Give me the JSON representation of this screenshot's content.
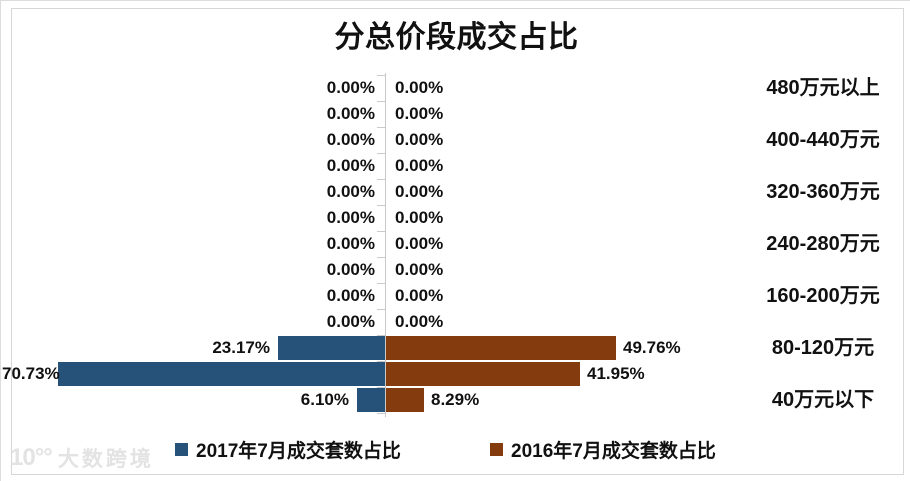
{
  "title": "分总价段成交占比",
  "watermark": {
    "logo": "10°°",
    "brand": "大数跨境"
  },
  "chart_data": {
    "type": "bar",
    "variant": "tornado-horizontal",
    "title": "分总价段成交占比",
    "categories": [
      "480万元以上",
      "",
      "400-440万元",
      "",
      "320-360万元",
      "",
      "240-280万元",
      "",
      "160-200万元",
      "",
      "80-120万元",
      "",
      "40万元以下"
    ],
    "series": [
      {
        "name": "2017年7月成交套数占比",
        "side": "left",
        "color": "#265279",
        "values": [
          0,
          0,
          0,
          0,
          0,
          0,
          0,
          0,
          0,
          0,
          23.17,
          70.73,
          6.1
        ]
      },
      {
        "name": "2016年7月成交套数占比",
        "side": "right",
        "color": "#843c0e",
        "values": [
          0,
          0,
          0,
          0,
          0,
          0,
          0,
          0,
          0,
          0,
          49.76,
          41.95,
          8.29
        ]
      }
    ],
    "value_format": "0.00%",
    "layout": {
      "category_labels_position": "right",
      "legend_position": "bottom",
      "gridlines": false,
      "value_labels": "outside-end"
    }
  }
}
